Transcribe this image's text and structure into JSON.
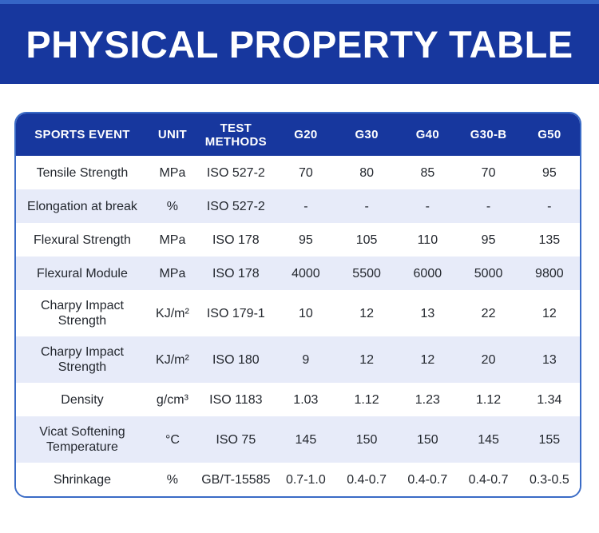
{
  "banner": {
    "title": "PHYSICAL PROPERTY TABLE"
  },
  "colors": {
    "accent_strip": "#3565C6",
    "banner_blue": "#17379E",
    "header_blue": "#17379E",
    "row_alt": "#E7EBF9",
    "border_blue": "#3A6BC6",
    "text_dark": "#23272E",
    "header_text": "#FFFFFF"
  },
  "table": {
    "columns": [
      "SPORTS EVENT",
      "UNIT",
      "TEST METHODS",
      "G20",
      "G30",
      "G40",
      "G30-B",
      "G50"
    ],
    "rows": [
      [
        "Tensile Strength",
        "MPa",
        "ISO 527-2",
        "70",
        "80",
        "85",
        "70",
        "95"
      ],
      [
        "Elongation at break",
        "%",
        "ISO 527-2",
        "-",
        "-",
        "-",
        "-",
        "-"
      ],
      [
        "Flexural Strength",
        "MPa",
        "ISO 178",
        "95",
        "105",
        "110",
        "95",
        "135"
      ],
      [
        "Flexural Module",
        "MPa",
        "ISO 178",
        "4000",
        "5500",
        "6000",
        "5000",
        "9800"
      ],
      [
        "Charpy Impact Strength",
        "KJ/m²",
        "ISO 179-1",
        "10",
        "12",
        "13",
        "22",
        "12"
      ],
      [
        "Charpy Impact Strength",
        "KJ/m²",
        "ISO 180",
        "9",
        "12",
        "12",
        "20",
        "13"
      ],
      [
        "Density",
        "g/cm³",
        "ISO 1183",
        "1.03",
        "1.12",
        "1.23",
        "1.12",
        "1.34"
      ],
      [
        "Vicat Softening Temperature",
        "°C",
        "ISO 75",
        "145",
        "150",
        "150",
        "145",
        "155"
      ],
      [
        "Shrinkage",
        "%",
        "GB/T-15585",
        "0.7-1.0",
        "0.4-0.7",
        "0.4-0.7",
        "0.4-0.7",
        "0.3-0.5"
      ]
    ]
  }
}
